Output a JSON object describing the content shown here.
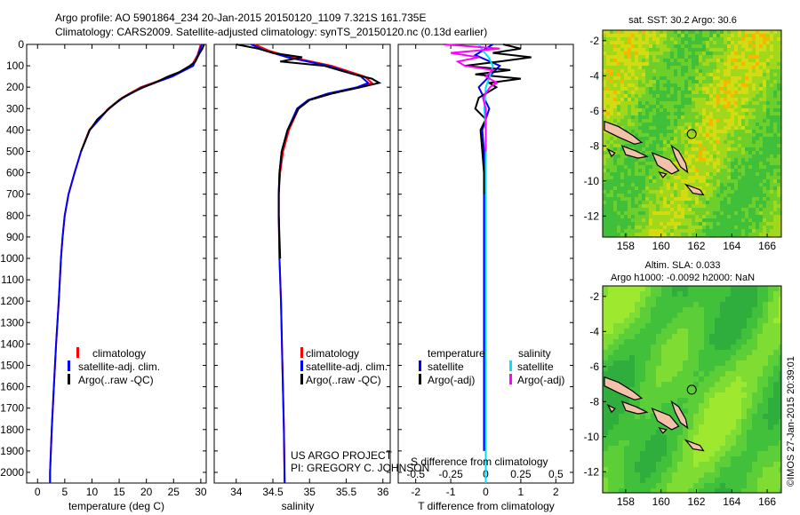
{
  "header": {
    "title_line1": "Argo profile: AO 5901864_234 20-Jan-2015 20150120_1109 7.321S 161.735E",
    "title_line2": "Climatology: CARS2009. Satellite-adjusted climatology: synTS_20150120.nc (0.13d earlier)"
  },
  "colors": {
    "climatology": "#ff0000",
    "satellite": "#0000ff",
    "argo": "#000000",
    "salinity_satellite": "#00e0ff",
    "salinity_argo": "#ff00ff",
    "land": "#f2c2a8"
  },
  "chart_data": [
    {
      "id": "temperature",
      "type": "line",
      "xlabel": "temperature (deg C)",
      "xlim": [
        -2,
        31
      ],
      "xticks": [
        0,
        5,
        10,
        15,
        20,
        25,
        30
      ],
      "ylim": [
        2050,
        0
      ],
      "yticks": [
        0,
        100,
        200,
        300,
        400,
        500,
        600,
        700,
        800,
        900,
        1000,
        1100,
        1200,
        1300,
        1400,
        1500,
        1600,
        1700,
        1800,
        1900,
        2000
      ],
      "legend": [
        "climatology",
        "satellite-adj. clim.",
        "Argo(..raw -QC)"
      ],
      "series": [
        {
          "name": "climatology",
          "color": "#ff0000",
          "depth": [
            0,
            50,
            100,
            150,
            200,
            250,
            300,
            400,
            500,
            600,
            700,
            800,
            900,
            1000,
            1200,
            1400,
            1600,
            1800,
            2000,
            2050
          ],
          "values": [
            30.0,
            29.4,
            28.3,
            24.5,
            19.0,
            15.5,
            13.0,
            9.5,
            8.0,
            6.8,
            5.7,
            5.0,
            4.6,
            4.3,
            3.9,
            3.4,
            3.0,
            2.6,
            2.3,
            2.3
          ]
        },
        {
          "name": "satellite-adj. clim.",
          "color": "#0000ff",
          "depth": [
            0,
            50,
            100,
            150,
            200,
            250,
            300,
            400,
            500,
            600,
            700,
            800,
            900,
            1000,
            1200,
            1400,
            1600,
            1800,
            2000,
            2050
          ],
          "values": [
            30.2,
            29.5,
            28.6,
            24.8,
            19.3,
            15.7,
            13.1,
            9.6,
            8.0,
            6.8,
            5.7,
            5.0,
            4.6,
            4.3,
            3.9,
            3.4,
            3.0,
            2.6,
            2.3,
            2.3
          ]
        },
        {
          "name": "Argo(..raw -QC)",
          "color": "#000000",
          "depth": [
            0,
            20,
            50,
            80,
            100,
            130,
            150,
            180,
            200,
            230,
            260,
            300,
            350,
            400,
            500
          ],
          "values": [
            30.6,
            30.3,
            29.6,
            29.0,
            28.0,
            26.0,
            24.0,
            21.5,
            19.5,
            17.0,
            15.0,
            13.2,
            11.0,
            9.6,
            8.0
          ]
        }
      ]
    },
    {
      "id": "salinity",
      "type": "line",
      "xlabel": "salinity",
      "xlim": [
        33.7,
        36.1
      ],
      "xticks": [
        34,
        34.5,
        35,
        35.5,
        36
      ],
      "xtick_labels": [
        "34",
        "34.5",
        "35",
        "35.5",
        "36"
      ],
      "ylim": [
        2050,
        0
      ],
      "legend": [
        "climatology",
        "satellite-adj. clim.",
        "Argo(..raw -QC)"
      ],
      "credit_line1": "US ARGO PROJECT",
      "credit_line2": "PI: GREGORY C. JOHNSON",
      "series": [
        {
          "name": "climatology",
          "color": "#ff0000",
          "depth": [
            0,
            30,
            60,
            100,
            150,
            180,
            200,
            230,
            260,
            300,
            400,
            500,
            600,
            700,
            800,
            1000,
            1200,
            1500,
            1800,
            2050
          ],
          "values": [
            34.25,
            34.45,
            34.75,
            35.3,
            35.75,
            35.85,
            35.7,
            35.3,
            35.0,
            34.85,
            34.72,
            34.64,
            34.6,
            34.58,
            34.58,
            34.59,
            34.61,
            34.63,
            34.65,
            34.66
          ]
        },
        {
          "name": "satellite-adj. clim.",
          "color": "#0000ff",
          "depth": [
            0,
            30,
            60,
            100,
            150,
            180,
            200,
            230,
            260,
            300,
            400,
            500,
            600,
            700,
            800,
            1000,
            1200,
            1500,
            1800,
            2050
          ],
          "values": [
            34.2,
            34.4,
            34.7,
            35.25,
            35.7,
            35.8,
            35.65,
            35.25,
            34.98,
            34.83,
            34.7,
            34.62,
            34.59,
            34.58,
            34.58,
            34.59,
            34.61,
            34.63,
            34.65,
            34.66
          ]
        },
        {
          "name": "Argo(..raw -QC)",
          "color": "#000000",
          "depth": [
            0,
            20,
            40,
            60,
            80,
            100,
            120,
            140,
            160,
            180,
            200,
            230,
            260,
            300,
            400,
            500,
            600,
            700,
            800,
            1000
          ],
          "values": [
            34.0,
            34.3,
            34.5,
            34.9,
            34.6,
            35.2,
            35.4,
            35.6,
            35.85,
            35.95,
            35.7,
            35.3,
            35.0,
            34.85,
            34.7,
            34.62,
            34.59,
            34.58,
            34.58,
            34.6
          ]
        }
      ]
    },
    {
      "id": "differences",
      "type": "line",
      "xlabel": "T difference from climatology",
      "xlabel_top": "S difference from climatology",
      "xlim": [
        -2.5,
        2.5
      ],
      "xticks": [
        -2,
        -1,
        0,
        1,
        2
      ],
      "s_ticks": [
        -0.5,
        -0.25,
        0,
        0.25,
        0.5
      ],
      "s_tick_labels": [
        "-0.5",
        "-0.25",
        "0",
        "0.25",
        "0.5"
      ],
      "ylim": [
        2050,
        0
      ],
      "legend_temperature_title": "temperature",
      "legend_salinity_title": "salinity",
      "legend_temperature": [
        "satellite",
        "Argo(-adj)"
      ],
      "legend_salinity": [
        "satellite",
        "Argo(-adj)"
      ],
      "series": [
        {
          "name": "T satellite",
          "color": "#0000ff",
          "depth": [
            0,
            50,
            100,
            150,
            200,
            300,
            400,
            500,
            600,
            800,
            1000,
            1200,
            1400,
            1600,
            1800,
            1900
          ],
          "values": [
            0.2,
            -0.3,
            0.4,
            0.1,
            -0.2,
            0.1,
            -0.1,
            -0.05,
            -0.05,
            -0.05,
            -0.05,
            -0.05,
            -0.05,
            -0.05,
            -0.05,
            -0.05
          ]
        },
        {
          "name": "T Argo(-adj)",
          "color": "#000000",
          "depth": [
            0,
            20,
            40,
            60,
            80,
            100,
            120,
            140,
            160,
            180,
            200,
            250,
            300,
            350,
            400,
            500,
            600,
            700
          ],
          "values": [
            0.5,
            1.0,
            0.2,
            1.3,
            0.4,
            -0.6,
            0.7,
            -0.3,
            1.0,
            0.1,
            0.3,
            -0.2,
            -0.3,
            0.0,
            -0.15,
            -0.1,
            -0.05,
            -0.05
          ]
        },
        {
          "name": "S satellite",
          "color": "#00e0ff",
          "depth": [
            0,
            30,
            60,
            100,
            150,
            200,
            300,
            400,
            600,
            800,
            1000,
            1500,
            2050
          ],
          "values": [
            -0.05,
            -0.02,
            0.02,
            0.05,
            0.03,
            0.0,
            -0.01,
            0.0,
            0.0,
            0.0,
            0.0,
            0.0,
            0.0
          ]
        },
        {
          "name": "S Argo(-adj)",
          "color": "#ff00ff",
          "depth": [
            0,
            20,
            40,
            60,
            80,
            100,
            120,
            150,
            180,
            200,
            250,
            300,
            400,
            500
          ],
          "values": [
            -0.3,
            0.1,
            -0.25,
            -0.05,
            -0.2,
            -0.15,
            0.05,
            0.0,
            0.08,
            0.03,
            -0.02,
            0.0,
            0.0,
            0.0
          ]
        }
      ]
    },
    {
      "id": "sst_map",
      "type": "heatmap",
      "title": "sat. SST: 30.2 Argo: 30.6",
      "xlim": [
        156.7,
        166.8
      ],
      "ylim": [
        -13.2,
        -1.4
      ],
      "xticks": [
        158,
        160,
        162,
        164,
        166
      ],
      "yticks": [
        -2,
        -4,
        -6,
        -8,
        -10,
        -12
      ],
      "marker": {
        "lon": 161.735,
        "lat": -7.321
      }
    },
    {
      "id": "sla_map",
      "type": "heatmap",
      "title_line1": "Altim. SLA: 0.033",
      "title_line2": "Argo h1000: -0.0092 h2000: NaN",
      "xlim": [
        156.7,
        166.8
      ],
      "ylim": [
        -13.2,
        -1.4
      ],
      "xticks": [
        158,
        160,
        162,
        164,
        166
      ],
      "yticks": [
        -2,
        -4,
        -6,
        -8,
        -10,
        -12
      ],
      "marker": {
        "lon": 161.735,
        "lat": -7.321
      }
    }
  ],
  "timestamp": "©IMOS 27-Jan-2015 20:39:01"
}
